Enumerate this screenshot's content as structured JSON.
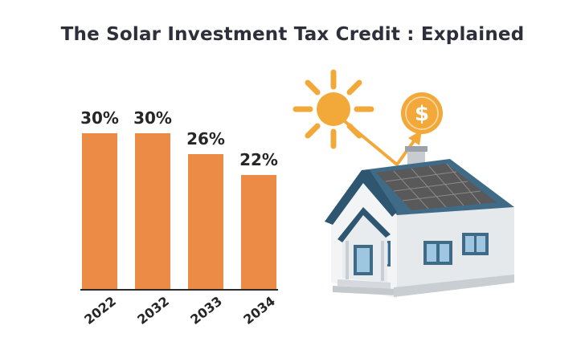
{
  "chart_data": {
    "type": "bar",
    "title": "The Solar Investment Tax Credit : Explained",
    "categories": [
      "2022",
      "2032",
      "2033",
      "2034"
    ],
    "values": [
      30,
      30,
      26,
      22
    ],
    "data_labels": [
      "30%",
      "30%",
      "26%",
      "22%"
    ],
    "unit": "%",
    "xlabel": "",
    "ylabel": "",
    "ylim": [
      0,
      30
    ],
    "grid": false,
    "bar_color": "#ec8b46"
  },
  "illustration": {
    "name": "solar-house-illustration",
    "icons": [
      "sun-icon",
      "dollar-coin-icon",
      "house-with-solar-panel"
    ],
    "coin_symbol": "$",
    "colors": {
      "sun": "#f3a93a",
      "coin": "#f3a93a",
      "roof": "#3f6b86",
      "panel": "#5a5a5a",
      "walls": "#f2f4f6"
    }
  }
}
